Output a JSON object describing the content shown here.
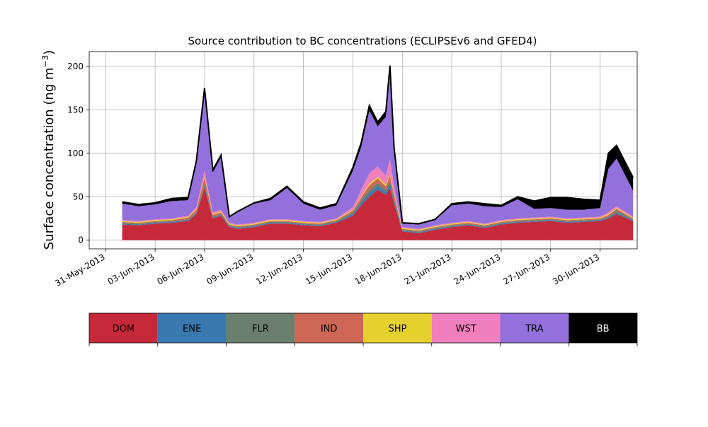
{
  "chart_data": {
    "type": "area",
    "stacked": true,
    "title": "Source contribution to BC concentrations (ECLIPSEv6 and GFED4)",
    "ylabel_main": "Surface concentration (ng m",
    "ylabel_sup": "−3",
    "ylabel_tail": ")",
    "xlabel": "",
    "ylim": [
      -10,
      217
    ],
    "yticks": [
      0,
      50,
      100,
      150,
      200
    ],
    "x_start": "2013-06-01",
    "x_end": "2013-07-02",
    "xticks": [
      "31-May-2013",
      "03-Jun-2013",
      "06-Jun-2013",
      "09-Jun-2013",
      "12-Jun-2013",
      "15-Jun-2013",
      "18-Jun-2013",
      "21-Jun-2013",
      "24-Jun-2013",
      "27-Jun-2013",
      "30-Jun-2013"
    ],
    "grid": true,
    "x_dates": [
      "2013-06-01",
      "2013-06-02",
      "2013-06-03",
      "2013-06-04",
      "2013-06-05",
      "2013-06-05 12:00",
      "2013-06-06",
      "2013-06-06 12:00",
      "2013-06-07",
      "2013-06-07 12:00",
      "2013-06-08",
      "2013-06-09",
      "2013-06-10",
      "2013-06-11",
      "2013-06-12",
      "2013-06-13",
      "2013-06-14",
      "2013-06-15",
      "2013-06-15 12:00",
      "2013-06-16",
      "2013-06-16 12:00",
      "2013-06-17",
      "2013-06-17 06:00",
      "2013-06-17 12:00",
      "2013-06-18",
      "2013-06-19",
      "2013-06-20",
      "2013-06-21",
      "2013-06-22",
      "2013-06-23",
      "2013-06-24",
      "2013-06-25",
      "2013-06-26",
      "2013-06-27",
      "2013-06-28",
      "2013-06-29",
      "2013-06-30",
      "2013-06-30 12:00",
      "2013-07-01",
      "2013-07-02"
    ],
    "series": [
      {
        "name": "DOM",
        "color": "#c62a3a",
        "values": [
          18,
          17,
          19,
          20,
          22,
          30,
          60,
          25,
          28,
          15,
          13,
          15,
          19,
          19,
          17,
          16,
          20,
          28,
          40,
          50,
          58,
          52,
          60,
          42,
          10,
          8,
          12,
          15,
          17,
          14,
          18,
          20,
          21,
          22,
          20,
          21,
          22,
          25,
          30,
          22
        ]
      },
      {
        "name": "ENE",
        "color": "#3a78b0",
        "values": [
          1,
          1,
          1,
          1,
          1,
          1,
          2,
          1,
          1,
          1,
          1,
          1,
          1,
          1,
          1,
          1,
          1,
          2,
          3,
          4,
          4,
          3,
          4,
          3,
          1,
          1,
          1,
          1,
          1,
          1,
          1,
          1,
          1,
          1,
          1,
          1,
          1,
          1,
          2,
          1
        ]
      },
      {
        "name": "FLR",
        "color": "#6b7f6f",
        "values": [
          1,
          1,
          1,
          1,
          1,
          1,
          3,
          1,
          1,
          1,
          1,
          1,
          1,
          1,
          1,
          1,
          1,
          2,
          3,
          4,
          4,
          3,
          4,
          3,
          1,
          1,
          1,
          1,
          1,
          1,
          1,
          1,
          1,
          1,
          1,
          1,
          1,
          1,
          2,
          1
        ]
      },
      {
        "name": "IND",
        "color": "#cd6655",
        "values": [
          1,
          1,
          1,
          1,
          2,
          3,
          7,
          2,
          2,
          1,
          1,
          1,
          1,
          1,
          1,
          1,
          1,
          2,
          3,
          5,
          5,
          4,
          6,
          4,
          1,
          1,
          1,
          1,
          1,
          1,
          1,
          1,
          1,
          1,
          1,
          1,
          1,
          2,
          2,
          1
        ]
      },
      {
        "name": "SHP",
        "color": "#e5d12e",
        "values": [
          1,
          1,
          1,
          1,
          1,
          1,
          2,
          1,
          1,
          1,
          1,
          1,
          1,
          1,
          1,
          1,
          1,
          1,
          1,
          2,
          2,
          2,
          2,
          2,
          1,
          1,
          1,
          1,
          1,
          1,
          1,
          1,
          1,
          1,
          1,
          1,
          1,
          1,
          1,
          1
        ]
      },
      {
        "name": "WST",
        "color": "#f07fbd",
        "values": [
          1,
          1,
          1,
          1,
          1,
          2,
          6,
          2,
          2,
          1,
          1,
          1,
          1,
          1,
          1,
          1,
          1,
          3,
          8,
          12,
          12,
          10,
          18,
          8,
          1,
          1,
          1,
          1,
          1,
          1,
          1,
          1,
          1,
          1,
          1,
          1,
          1,
          2,
          2,
          1
        ]
      },
      {
        "name": "TRA",
        "color": "#9370db",
        "values": [
          19,
          17,
          17,
          20,
          18,
          50,
          89,
          46,
          60,
          6,
          14,
          22,
          22,
          36,
          20,
          14,
          15,
          42,
          49,
          72,
          46,
          68,
          100,
          40,
          4,
          5,
          6,
          20,
          20,
          20,
          15,
          22,
          10,
          10,
          10,
          9,
          10,
          50,
          55,
          30
        ]
      },
      {
        "name": "BB",
        "color": "#000000",
        "values": [
          2,
          2,
          2,
          3,
          3,
          3,
          6,
          3,
          3,
          1,
          1,
          1,
          2,
          2,
          2,
          2,
          2,
          4,
          5,
          6,
          5,
          6,
          7,
          5,
          1,
          1,
          1,
          2,
          2,
          3,
          2,
          3,
          9,
          12,
          14,
          12,
          9,
          18,
          15,
          15
        ]
      }
    ]
  },
  "legend": {
    "entries": [
      {
        "label": "DOM",
        "color": "#c62a3a",
        "text_color": "#000000"
      },
      {
        "label": "ENE",
        "color": "#3a78b0",
        "text_color": "#000000"
      },
      {
        "label": "FLR",
        "color": "#6b7f6f",
        "text_color": "#000000"
      },
      {
        "label": "IND",
        "color": "#cd6655",
        "text_color": "#000000"
      },
      {
        "label": "SHP",
        "color": "#e5d12e",
        "text_color": "#000000"
      },
      {
        "label": "WST",
        "color": "#f07fbd",
        "text_color": "#000000"
      },
      {
        "label": "TRA",
        "color": "#9370db",
        "text_color": "#000000"
      },
      {
        "label": "BB",
        "color": "#000000",
        "text_color": "#ffffff"
      }
    ]
  }
}
